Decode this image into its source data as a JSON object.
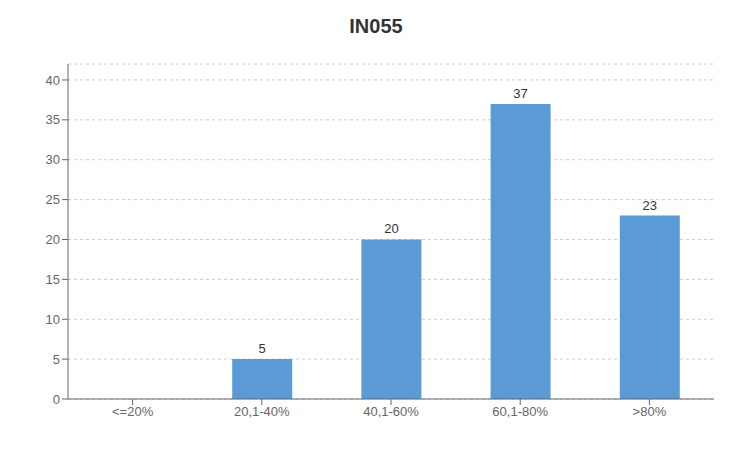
{
  "chart_data": {
    "type": "bar",
    "title": "IN055",
    "categories": [
      "<=20%",
      "20,1-40%",
      "40,1-60%",
      "60,1-80%",
      ">80%"
    ],
    "values": [
      0,
      5,
      20,
      37,
      23
    ],
    "value_labels": [
      null,
      "5",
      "20",
      "37",
      "23"
    ],
    "data_labels": true,
    "color": "#5b9bd5",
    "ylim": [
      0,
      42
    ],
    "yticks": [
      0,
      5,
      10,
      15,
      20,
      25,
      30,
      35,
      40
    ],
    "grid": true
  }
}
